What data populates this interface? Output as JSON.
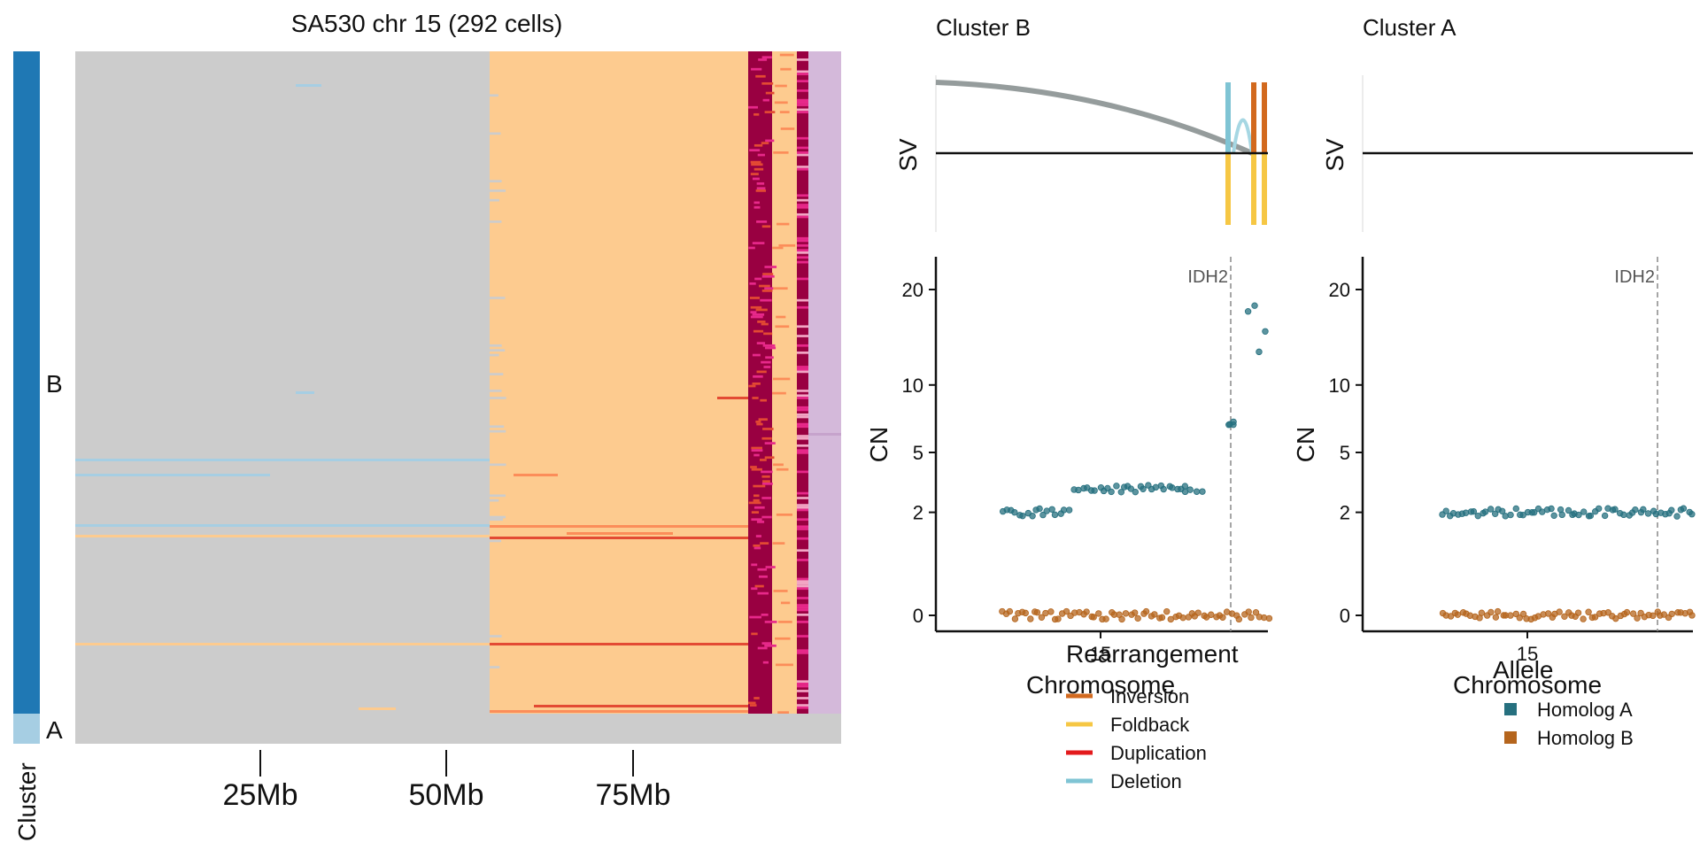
{
  "heatmap": {
    "title": "SA530 chr 15 (292 cells)",
    "cluster_axis_label": "Cluster",
    "clusters": [
      {
        "label": "B",
        "color": "#1f78b4",
        "cells": 278
      },
      {
        "label": "A",
        "color": "#a6cee3",
        "cells": 14
      }
    ],
    "x_ticks": [
      {
        "label": "25Mb",
        "value": 25
      },
      {
        "label": "50Mb",
        "value": 50
      },
      {
        "label": "75Mb",
        "value": 75
      }
    ],
    "state_colors": {
      "loss": "#a6cee3",
      "neutral": "#cccccc",
      "gain": "#fdcb8f",
      "gain2": "#fc8d59",
      "gain3": "#e34a33",
      "high": "#990041",
      "pink": "#e7298a",
      "unknown": "#d4b9da"
    }
  },
  "panels": [
    {
      "title": "Cluster B",
      "sv_label": "SV",
      "cn_label": "CN",
      "xlabel": "Chromosome",
      "x_tick": "15",
      "gene": "IDH2"
    },
    {
      "title": "Cluster A",
      "sv_label": "SV",
      "cn_label": "CN",
      "xlabel": "Chromosome",
      "x_tick": "15",
      "gene": "IDH2"
    }
  ],
  "legend_rearrangement": {
    "title": "Rearrangement",
    "items": [
      {
        "label": "Inversion",
        "color": "#d2691e"
      },
      {
        "label": "Foldback",
        "color": "#f6c744"
      },
      {
        "label": "Duplication",
        "color": "#e31a1c"
      },
      {
        "label": "Deletion",
        "color": "#7fc4d4"
      }
    ]
  },
  "legend_allele": {
    "title": "Allele",
    "items": [
      {
        "label": "Homolog A",
        "color": "#26707f"
      },
      {
        "label": "Homolog B",
        "color": "#b5651d"
      }
    ]
  },
  "chart_data": [
    {
      "type": "heatmap",
      "title": "SA530 chr 15 (292 cells)",
      "x_unit": "Mb",
      "x_ticks": [
        25,
        50,
        75
      ],
      "rows": 292,
      "clusters": [
        {
          "name": "B",
          "cells": 278
        },
        {
          "name": "A",
          "cells": 14
        }
      ]
    },
    {
      "type": "scatter",
      "title": "Cluster B",
      "ylabel": "CN",
      "xlabel": "Chromosome",
      "x_ticks": [
        "15"
      ],
      "y_ticks": [
        0,
        2,
        5,
        10,
        20
      ],
      "ylim": [
        0,
        24
      ],
      "y_scale": "sqrt",
      "annotation": "IDH2",
      "series": [
        {
          "name": "Homolog A",
          "segments": [
            {
              "x": [
                0.2,
                0.4
              ],
              "y": 2.0
            },
            {
              "x": [
                0.42,
                0.75
              ],
              "y": 3.0
            },
            {
              "x": [
                0.75,
                0.8
              ],
              "y": 3.0
            },
            {
              "x": [
                0.88,
                0.9
              ],
              "y": 7.0
            },
            {
              "x": [
                0.94,
                0.99
              ],
              "y": 15.0
            }
          ]
        },
        {
          "name": "Homolog B",
          "segments": [
            {
              "x": [
                0.2,
                1.0
              ],
              "y": 0.0
            }
          ]
        }
      ],
      "sv": [
        {
          "type": "Deletion",
          "x": 0.88
        },
        {
          "type": "Foldback",
          "x": 0.88
        },
        {
          "type": "Inversion",
          "x": 0.96
        },
        {
          "type": "Inversion",
          "x": 0.99
        },
        {
          "type": "Foldback",
          "x": 0.96
        },
        {
          "type": "Foldback",
          "x": 0.99
        }
      ]
    },
    {
      "type": "scatter",
      "title": "Cluster A",
      "ylabel": "CN",
      "xlabel": "Chromosome",
      "x_ticks": [
        "15"
      ],
      "y_ticks": [
        0,
        2,
        5,
        10,
        20
      ],
      "ylim": [
        0,
        24
      ],
      "y_scale": "sqrt",
      "annotation": "IDH2",
      "series": [
        {
          "name": "Homolog A",
          "segments": [
            {
              "x": [
                0.24,
                1.0
              ],
              "y": 2.0
            }
          ]
        },
        {
          "name": "Homolog B",
          "segments": [
            {
              "x": [
                0.24,
                1.0
              ],
              "y": 0.0
            }
          ]
        }
      ]
    }
  ]
}
